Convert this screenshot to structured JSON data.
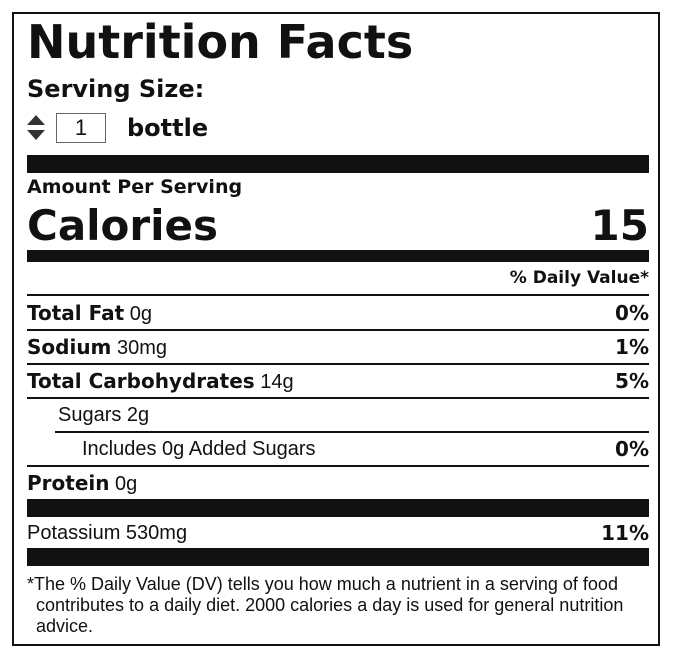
{
  "header": {
    "title": "Nutrition Facts",
    "serving_size_label": "Serving Size:",
    "serving_quantity": "1",
    "serving_unit": "bottle"
  },
  "calories": {
    "label": "Amount Per Serving",
    "name": "Calories",
    "value": "15"
  },
  "daily_value_header": "% Daily Value*",
  "rows": [
    {
      "name": "Total Fat",
      "amount": "0g",
      "dv": "0%"
    },
    {
      "name": "Sodium",
      "amount": "30mg",
      "dv": "1%"
    },
    {
      "name": "Total Carbohydrates",
      "amount": "14g",
      "dv": "5%"
    },
    {
      "text": "Sugars 2g"
    },
    {
      "text": "Includes 0g Added Sugars",
      "dv": "0%"
    },
    {
      "name": "Protein",
      "amount": "0g"
    },
    {
      "text": "Potassium 530mg",
      "dv": "11%"
    }
  ],
  "footnote": "*The % Daily Value (DV) tells you how much a nutrient in a serving of food contributes to a daily diet. 2000 calories a day is used for general nutrition advice."
}
